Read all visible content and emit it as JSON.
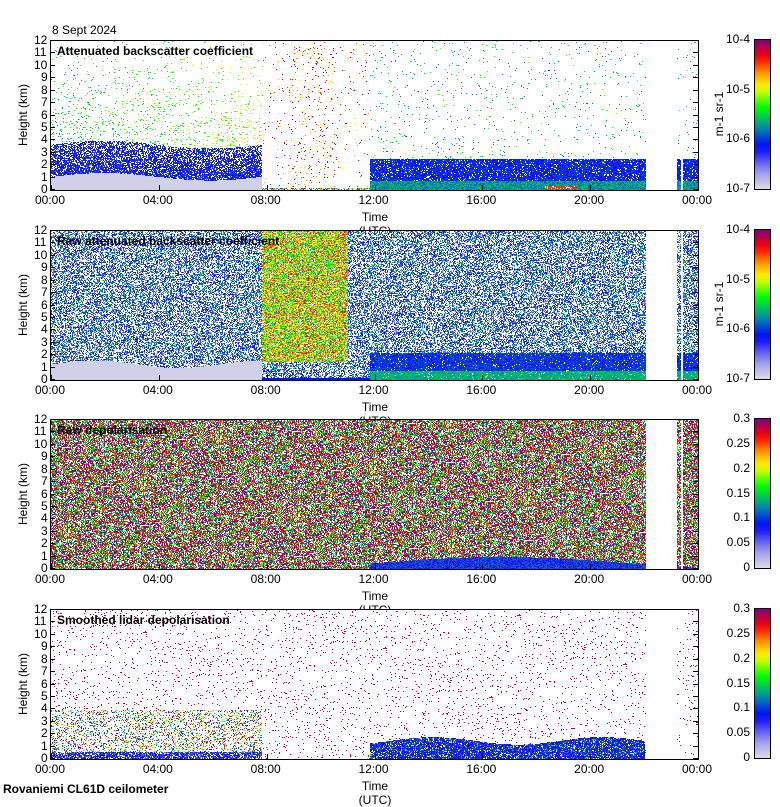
{
  "date": "8 Sept 2024",
  "footer": "Rovaniemi CL61D ceilometer",
  "colors": {
    "gray": "#dcdcdc",
    "blue": "#0000ff",
    "green": "#00ff00",
    "yellow": "#ffff00",
    "red": "#ff0000",
    "purple": "#800080"
  },
  "chart_data": [
    {
      "type": "heatmap",
      "title": "Attenuated backscatter coefficient",
      "xlabel": "Time (UTC)",
      "ylabel": "Height (km)",
      "xticks": [
        "00:00",
        "04:00",
        "08:00",
        "12:00",
        "16:00",
        "20:00",
        "00:00"
      ],
      "xlim_hours": [
        0,
        24
      ],
      "ylim": [
        0,
        12
      ],
      "yticks": [
        "0",
        "1",
        "2",
        "3",
        "4",
        "5",
        "6",
        "7",
        "8",
        "9",
        "10",
        "11",
        "12"
      ],
      "colorbar": {
        "scale": "log",
        "range": [
          1e-07,
          0.0001
        ],
        "ticks": [
          "10-7",
          "10-6",
          "10-5",
          "10-4"
        ],
        "label": "m-1 sr-1"
      }
    },
    {
      "type": "heatmap",
      "title": "Raw attenuated backscatter coefficient",
      "xlabel": "Time (UTC)",
      "ylabel": "Height (km)",
      "xticks": [
        "00:00",
        "04:00",
        "08:00",
        "12:00",
        "16:00",
        "20:00",
        "00:00"
      ],
      "xlim_hours": [
        0,
        24
      ],
      "ylim": [
        0,
        12
      ],
      "yticks": [
        "0",
        "1",
        "2",
        "3",
        "4",
        "5",
        "6",
        "7",
        "8",
        "9",
        "10",
        "11",
        "12"
      ],
      "colorbar": {
        "scale": "log",
        "range": [
          1e-07,
          0.0001
        ],
        "ticks": [
          "10-7",
          "10-6",
          "10-5",
          "10-4"
        ],
        "label": "m-1 sr-1"
      }
    },
    {
      "type": "heatmap",
      "title": "Raw depolarisation",
      "xlabel": "Time (UTC)",
      "ylabel": "Height (km)",
      "xticks": [
        "00:00",
        "04:00",
        "08:00",
        "12:00",
        "16:00",
        "20:00",
        "00:00"
      ],
      "xlim_hours": [
        0,
        24
      ],
      "ylim": [
        0,
        12
      ],
      "yticks": [
        "0",
        "1",
        "2",
        "3",
        "4",
        "5",
        "6",
        "7",
        "8",
        "9",
        "10",
        "11",
        "12"
      ],
      "colorbar": {
        "scale": "linear",
        "range": [
          0,
          0.3
        ],
        "ticks": [
          "0",
          "0.05",
          "0.1",
          "0.15",
          "0.2",
          "0.25",
          "0.3"
        ],
        "label": ""
      }
    },
    {
      "type": "heatmap",
      "title": "Smoothed lidar depolarisation",
      "xlabel": "Time (UTC)",
      "ylabel": "Height (km)",
      "xticks": [
        "00:00",
        "04:00",
        "08:00",
        "12:00",
        "16:00",
        "20:00",
        "00:00"
      ],
      "xlim_hours": [
        0,
        24
      ],
      "ylim": [
        0,
        12
      ],
      "yticks": [
        "0",
        "1",
        "2",
        "3",
        "4",
        "5",
        "6",
        "7",
        "8",
        "9",
        "10",
        "11",
        "12"
      ],
      "colorbar": {
        "scale": "linear",
        "range": [
          0,
          0.3
        ],
        "ticks": [
          "0",
          "0.05",
          "0.1",
          "0.15",
          "0.2",
          "0.25",
          "0.3"
        ],
        "label": ""
      }
    }
  ]
}
